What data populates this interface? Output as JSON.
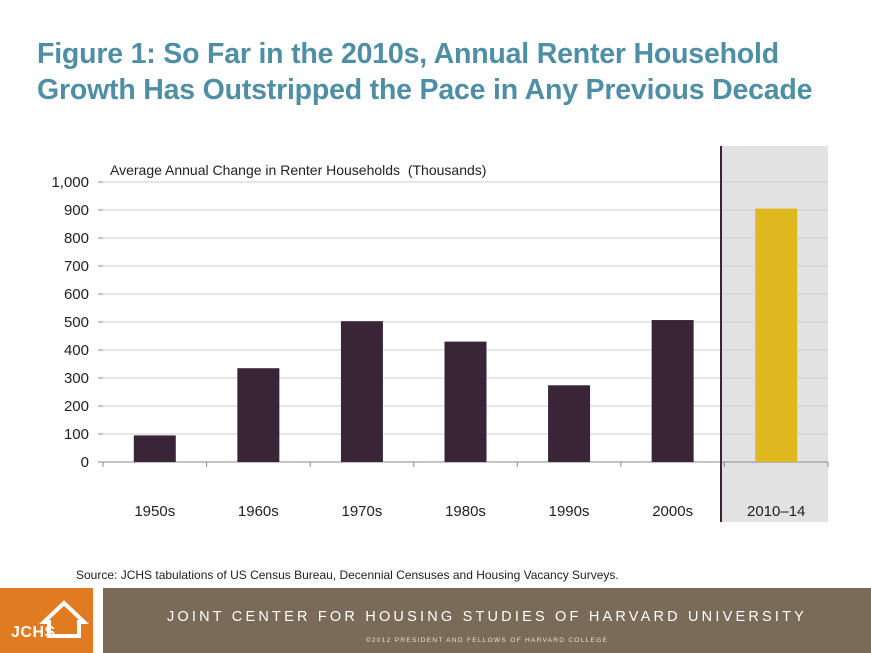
{
  "title": {
    "line1": "Figure 1: So Far in the 2010s, Annual Renter Household",
    "line2": "Growth Has Outstripped the Pace in Any Previous Decade"
  },
  "chart_data": {
    "type": "bar",
    "title": "Figure 1: So Far in the 2010s, Annual Renter Household Growth Has Outstripped the Pace in Any Previous Decade",
    "ylabel": "Average Annual Change in Renter Households  (Thousands)",
    "xlabel": "",
    "categories": [
      "1950s",
      "1960s",
      "1970s",
      "1980s",
      "1990s",
      "2000s",
      "2010–14"
    ],
    "values": [
      95,
      335,
      503,
      430,
      274,
      507,
      905
    ],
    "ylim": [
      0,
      1000
    ],
    "yticks": [
      0,
      100,
      200,
      300,
      400,
      500,
      600,
      700,
      800,
      900,
      1000
    ],
    "ytick_labels": [
      "0",
      "100",
      "200",
      "300",
      "400",
      "500",
      "600",
      "700",
      "800",
      "900",
      "1,000"
    ],
    "grid": true,
    "highlight_category": "2010–14",
    "colors": {
      "bar": "#3a2538",
      "highlight_bar": "#dfb81f",
      "highlight_bg": "#e2e2e2",
      "divider": "#3a2538",
      "grid": "#cfcfcf"
    }
  },
  "source": "Source: JCHS tabulations of US Census Bureau, Decennial Censuses and Housing Vacancy Surveys.",
  "footer": {
    "logo_text": "JCHS",
    "organization": "JOINT CENTER FOR HOUSING STUDIES OF HARVARD UNIVERSITY",
    "copyright": "©2012 PRESIDENT AND FELLOWS OF HARVARD COLLEGE",
    "logo_color": "#e07b22",
    "band_color": "#7a6a58"
  }
}
